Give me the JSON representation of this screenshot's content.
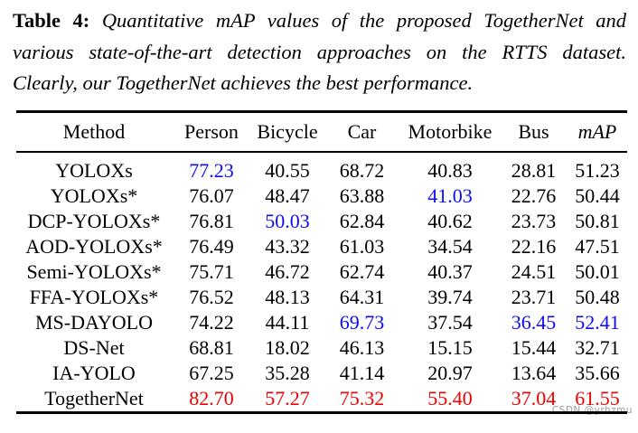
{
  "caption": {
    "label": "Table 4:",
    "lines": [
      "Quantitative mAP values of the proposed TogetherNet and",
      "various state-of-the-art detection approaches on the RTTS dataset.",
      "Clearly, our TogetherNet achieves the best performance."
    ]
  },
  "colors": {
    "text": "#000000",
    "best": "#ee0000",
    "second_best": "#0d0dee",
    "watermark": "#9b9ba3"
  },
  "table": {
    "columns": [
      {
        "label": "Method"
      },
      {
        "label": "Person"
      },
      {
        "label": "Bicycle"
      },
      {
        "label": "Car"
      },
      {
        "label": "Motorbike"
      },
      {
        "label": "Bus"
      },
      {
        "label": "mAP",
        "italic": true
      }
    ],
    "rows": [
      {
        "method": "YOLOXs",
        "cells": [
          {
            "v": "77.23",
            "h": "second"
          },
          {
            "v": "40.55"
          },
          {
            "v": "68.72"
          },
          {
            "v": "40.83"
          },
          {
            "v": "28.81"
          },
          {
            "v": "51.23"
          }
        ]
      },
      {
        "method": "YOLOXs*",
        "cells": [
          {
            "v": "76.07"
          },
          {
            "v": "48.47"
          },
          {
            "v": "63.88"
          },
          {
            "v": "41.03",
            "h": "second"
          },
          {
            "v": "22.76"
          },
          {
            "v": "50.44"
          }
        ]
      },
      {
        "method": "DCP-YOLOXs*",
        "cells": [
          {
            "v": "76.81"
          },
          {
            "v": "50.03",
            "h": "second"
          },
          {
            "v": "62.84"
          },
          {
            "v": "40.62"
          },
          {
            "v": "23.73"
          },
          {
            "v": "50.81"
          }
        ]
      },
      {
        "method": "AOD-YOLOXs*",
        "cells": [
          {
            "v": "76.49"
          },
          {
            "v": "43.32"
          },
          {
            "v": "61.03"
          },
          {
            "v": "34.54"
          },
          {
            "v": "22.16"
          },
          {
            "v": "47.51"
          }
        ]
      },
      {
        "method": "Semi-YOLOXs*",
        "cells": [
          {
            "v": "75.71"
          },
          {
            "v": "46.72"
          },
          {
            "v": "62.74"
          },
          {
            "v": "40.37"
          },
          {
            "v": "24.51"
          },
          {
            "v": "50.01"
          }
        ]
      },
      {
        "method": "FFA-YOLOXs*",
        "cells": [
          {
            "v": "76.52"
          },
          {
            "v": "48.13"
          },
          {
            "v": "64.31"
          },
          {
            "v": "39.74"
          },
          {
            "v": "23.71"
          },
          {
            "v": "50.48"
          }
        ]
      },
      {
        "method": "MS-DAYOLO",
        "cells": [
          {
            "v": "74.22"
          },
          {
            "v": "44.11"
          },
          {
            "v": "69.73",
            "h": "second"
          },
          {
            "v": "37.54"
          },
          {
            "v": "36.45",
            "h": "second"
          },
          {
            "v": "52.41",
            "h": "second"
          }
        ]
      },
      {
        "method": "DS-Net",
        "cells": [
          {
            "v": "68.81"
          },
          {
            "v": "18.02"
          },
          {
            "v": "46.13"
          },
          {
            "v": "15.15"
          },
          {
            "v": "15.44"
          },
          {
            "v": "32.71"
          }
        ]
      },
      {
        "method": "IA-YOLO",
        "cells": [
          {
            "v": "67.25"
          },
          {
            "v": "35.28"
          },
          {
            "v": "41.14"
          },
          {
            "v": "20.97"
          },
          {
            "v": "13.64"
          },
          {
            "v": "35.66"
          }
        ]
      },
      {
        "method": "TogetherNet",
        "cells": [
          {
            "v": "82.70",
            "h": "best"
          },
          {
            "v": "57.27",
            "h": "best"
          },
          {
            "v": "75.32",
            "h": "best"
          },
          {
            "v": "55.40",
            "h": "best"
          },
          {
            "v": "37.04",
            "h": "best"
          },
          {
            "v": "61.55",
            "h": "best"
          }
        ]
      }
    ]
  },
  "watermark": {
    "text": "CSDN @yrhzmu"
  }
}
